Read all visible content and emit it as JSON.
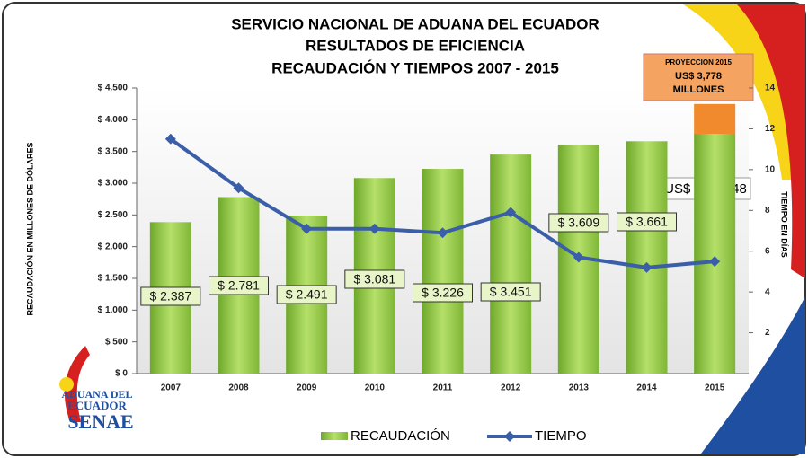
{
  "chart_data": {
    "type": "bar",
    "title": [
      "SERVICIO NACIONAL DE ADUANA DEL ECUADOR",
      "RESULTADOS DE EFICIENCIA",
      "RECAUDACIÓN Y TIEMPOS 2007 - 2015"
    ],
    "categories": [
      "2007",
      "2008",
      "2009",
      "2010",
      "2011",
      "2012",
      "2013",
      "2014",
      "2015"
    ],
    "series": [
      {
        "name": "RECAUDACIÓN",
        "color": "#8cc63f",
        "values": [
          2387,
          2781,
          2491,
          3081,
          3226,
          3451,
          3609,
          3661,
          3778
        ],
        "value_labels": [
          "$ 2.387",
          "$ 2.781",
          "$ 2.491",
          "$ 3.081",
          "$ 3.226",
          "$ 3.451",
          "$ 3.609",
          "$ 3.661",
          null
        ]
      },
      {
        "color": "#f08a2c",
        "values": [
          null,
          null,
          null,
          null,
          null,
          null,
          null,
          null,
          470
        ]
      },
      {
        "name": "TIEMPO",
        "color": "#3a5fa8",
        "axis": "y2",
        "values": [
          11.5,
          9.1,
          7.1,
          7.1,
          6.9,
          7.9,
          5.7,
          5.2,
          5.5
        ]
      }
    ],
    "ylim": [
      0,
      4500
    ],
    "yticks": [
      {
        "value": 0,
        "label": "$ 0"
      },
      {
        "value": 500,
        "label": "$ 500"
      },
      {
        "value": 1000,
        "label": "$ 1.000"
      },
      {
        "value": 1500,
        "label": "$ 1.500"
      },
      {
        "value": 2000,
        "label": "$ 2.000"
      },
      {
        "value": 2500,
        "label": "$ 2.500"
      },
      {
        "value": 3000,
        "label": "$ 3.000"
      },
      {
        "value": 3500,
        "label": "$ 3.500"
      },
      {
        "value": 4000,
        "label": "$ 4.000"
      },
      {
        "value": 4500,
        "label": "$ 4.500"
      }
    ],
    "y2lim": [
      0,
      14
    ],
    "y2ticks": [
      2,
      4,
      6,
      8,
      10,
      12,
      14
    ],
    "ylabel": "RECAUDACIÓN  EN MILLONES DE DÓLARES",
    "y2label": "TIEMPO EN DÍAS",
    "annotations": [
      "PROYECCION 2015",
      "US$ 3,778",
      "MILLONES",
      "US$ 3,298.48"
    ],
    "logo": [
      "ADUANA DEL",
      "ECUADOR",
      "SENAE"
    ]
  }
}
